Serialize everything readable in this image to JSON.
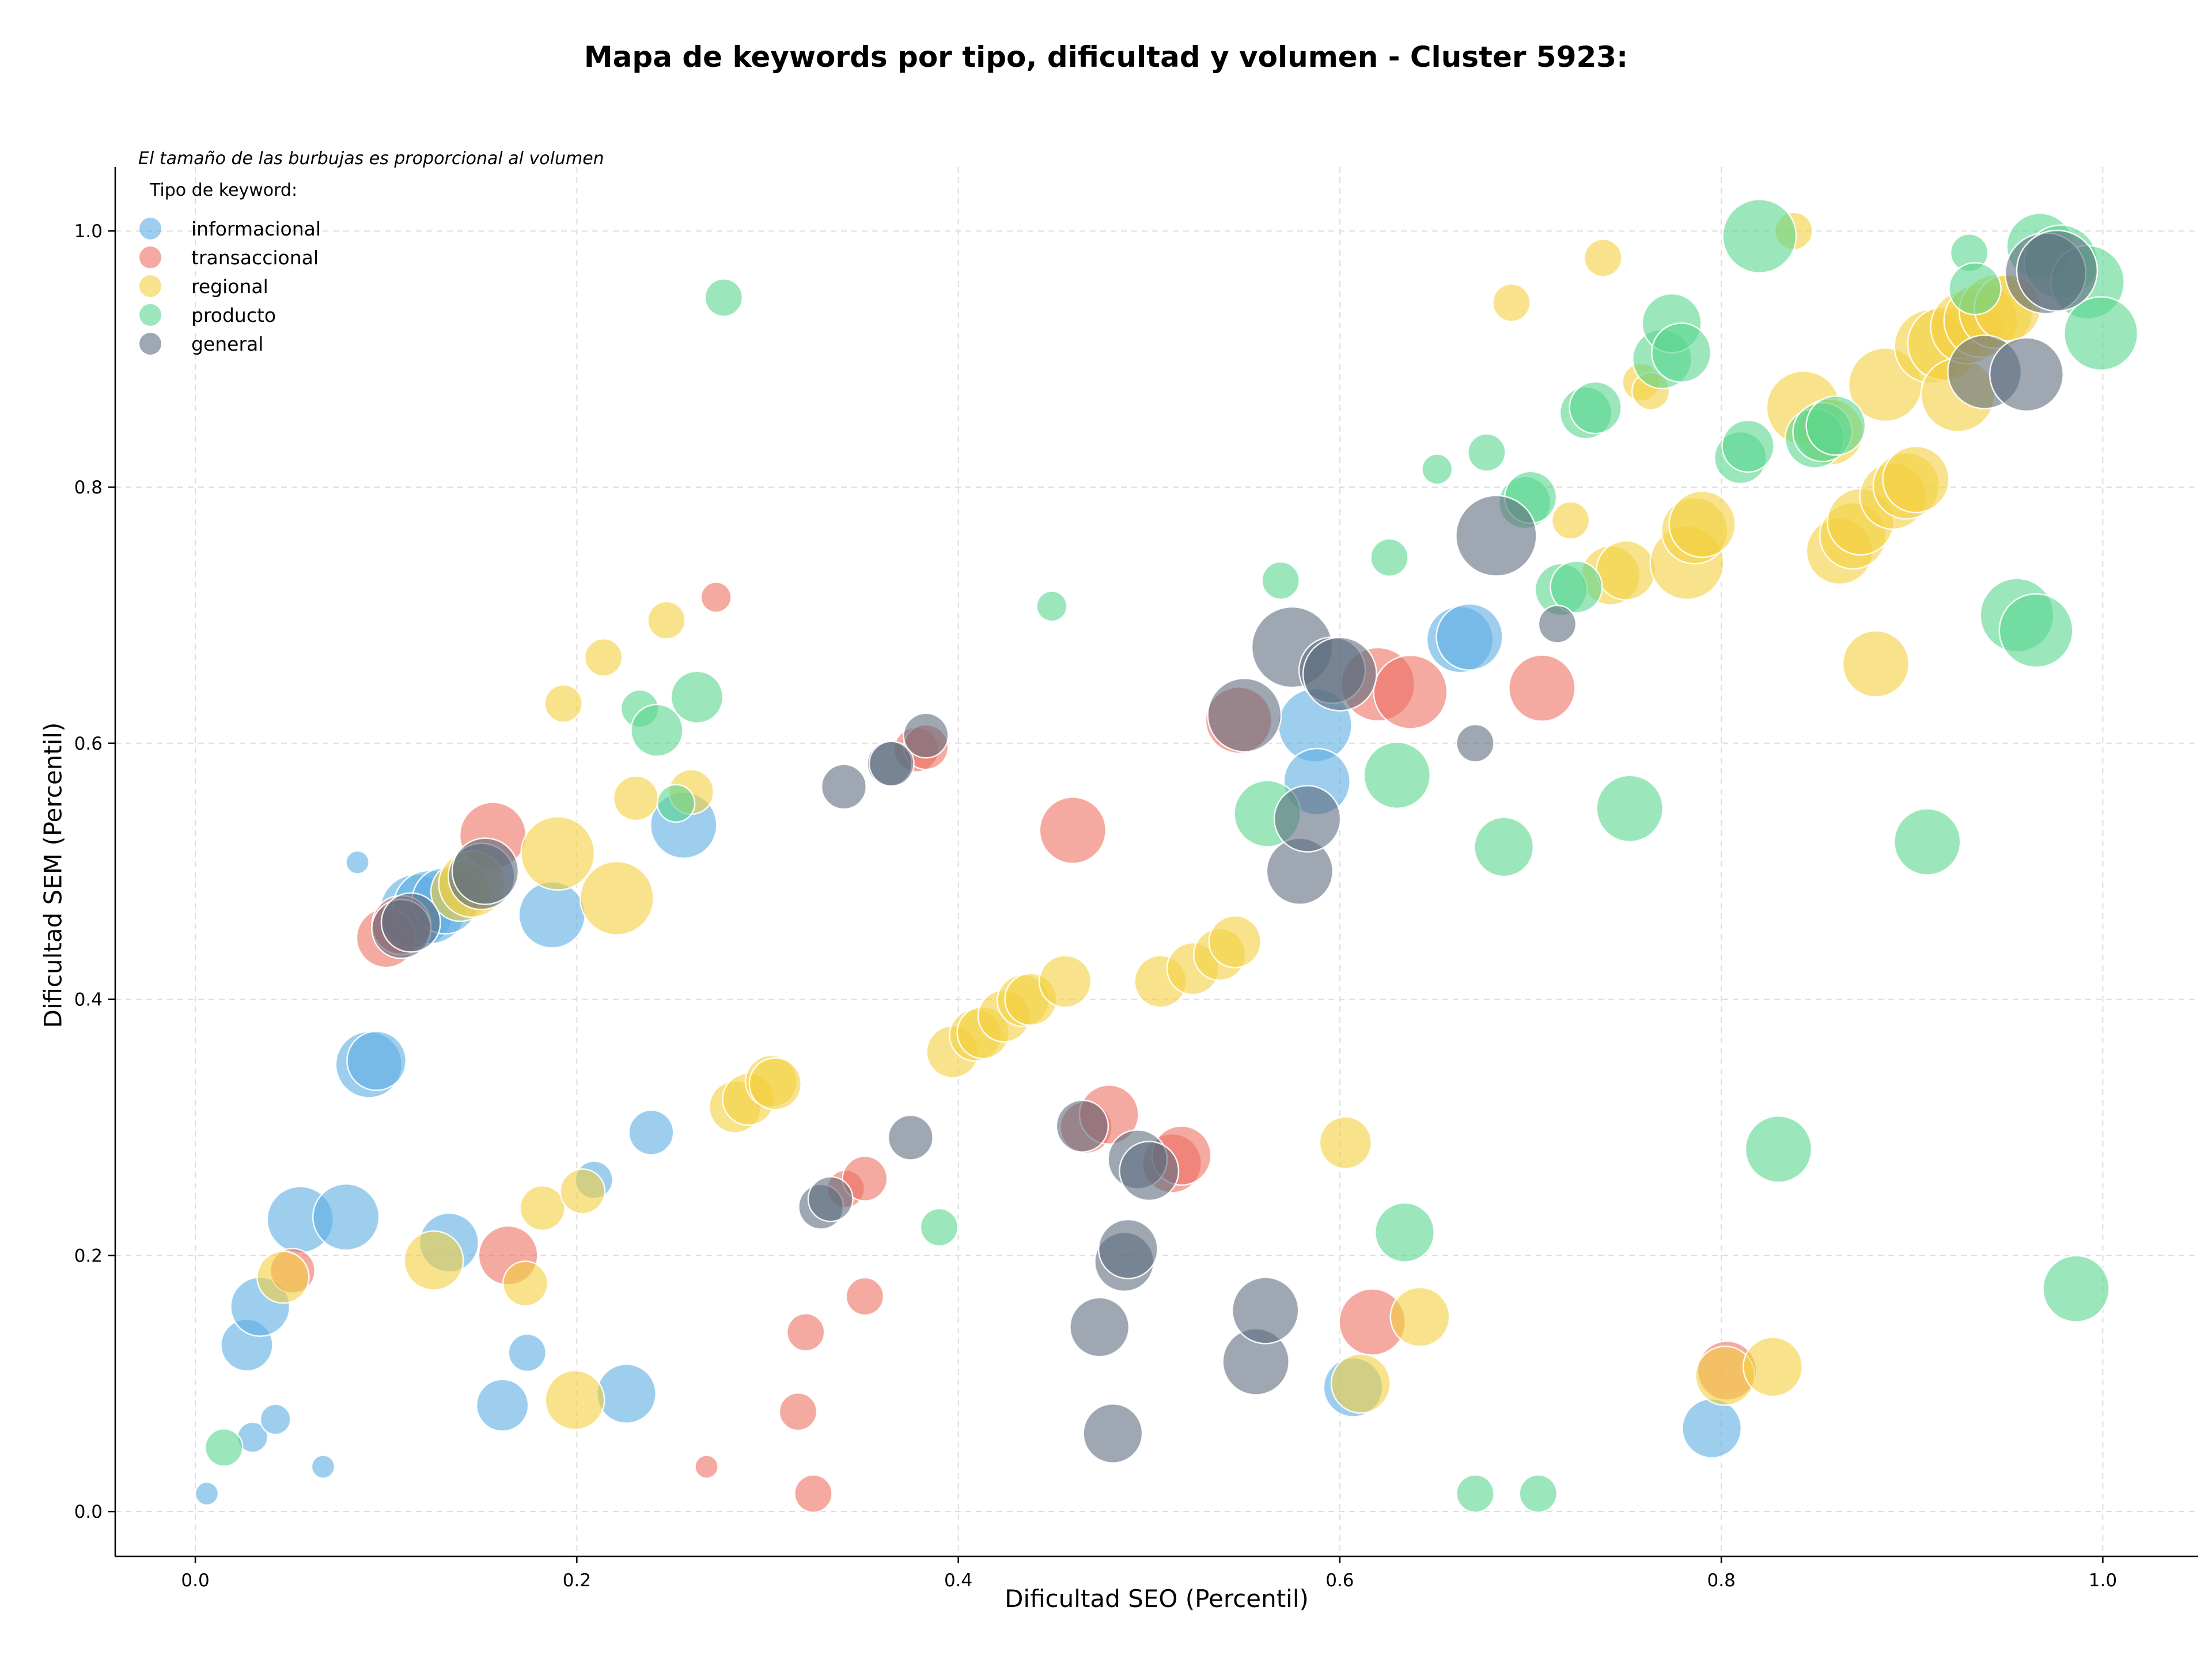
{
  "chart_data": {
    "type": "scatter",
    "title": "Mapa de keywords por tipo, dificultad y volumen - Cluster 5923:",
    "xlabel": "Dificultad SEO (Percentil)",
    "ylabel": "Dificultad SEM (Percentil)",
    "xlim": [
      -0.042,
      1.05
    ],
    "ylim": [
      -0.035,
      1.05
    ],
    "xticks": [
      0.0,
      0.2,
      0.4,
      0.6,
      0.8,
      1.0
    ],
    "yticks": [
      0.0,
      0.2,
      0.4,
      0.6,
      0.8,
      1.0
    ],
    "xtick_labels": [
      "0.0",
      "0.2",
      "0.4",
      "0.6",
      "0.8",
      "1.0"
    ],
    "ytick_labels": [
      "0.0",
      "0.2",
      "0.4",
      "0.6",
      "0.8",
      "1.0"
    ],
    "grid": true,
    "legend_position": "top-left",
    "legend_note": "El tamaño de las burbujas es proporcional al volumen",
    "legend_title": "Tipo de keyword:",
    "size_encoding": "bubble radius proportional to volume (relative 1-5)",
    "series": [
      {
        "name": "informacional",
        "color": "#5dade2",
        "points": [
          [
            0.006,
            0.014,
            1
          ],
          [
            0.027,
            0.13,
            3
          ],
          [
            0.03,
            0.058,
            1.5
          ],
          [
            0.034,
            0.16,
            3.5
          ],
          [
            0.042,
            0.072,
            1.5
          ],
          [
            0.055,
            0.228,
            4
          ],
          [
            0.067,
            0.035,
            1
          ],
          [
            0.079,
            0.23,
            4
          ],
          [
            0.085,
            0.507,
            1
          ],
          [
            0.091,
            0.349,
            4
          ],
          [
            0.095,
            0.352,
            3.5
          ],
          [
            0.116,
            0.469,
            4.5
          ],
          [
            0.123,
            0.472,
            4.5
          ],
          [
            0.131,
            0.477,
            4
          ],
          [
            0.133,
            0.21,
            3.5
          ],
          [
            0.161,
            0.083,
            3
          ],
          [
            0.174,
            0.124,
            2
          ],
          [
            0.187,
            0.466,
            4
          ],
          [
            0.209,
            0.259,
            2
          ],
          [
            0.226,
            0.092,
            3.5
          ],
          [
            0.239,
            0.296,
            2.5
          ],
          [
            0.256,
            0.536,
            4
          ],
          [
            0.587,
            0.614,
            4.5
          ],
          [
            0.588,
            0.57,
            4
          ],
          [
            0.607,
            0.097,
            3.5
          ],
          [
            0.663,
            0.681,
            4
          ],
          [
            0.668,
            0.683,
            4
          ],
          [
            0.795,
            0.065,
            3.5
          ]
        ]
      },
      {
        "name": "transaccional",
        "color": "#ec7063",
        "points": [
          [
            0.051,
            0.188,
            2.5
          ],
          [
            0.1,
            0.448,
            3.5
          ],
          [
            0.108,
            0.458,
            3.5
          ],
          [
            0.156,
            0.528,
            4
          ],
          [
            0.164,
            0.2,
            3.5
          ],
          [
            0.268,
            0.035,
            1
          ],
          [
            0.273,
            0.714,
            1.5
          ],
          [
            0.316,
            0.078,
            2
          ],
          [
            0.32,
            0.14,
            2
          ],
          [
            0.324,
            0.014,
            2
          ],
          [
            0.341,
            0.252,
            2
          ],
          [
            0.351,
            0.26,
            2.5
          ],
          [
            0.351,
            0.168,
            2
          ],
          [
            0.378,
            0.595,
            2.5
          ],
          [
            0.383,
            0.597,
            2.5
          ],
          [
            0.46,
            0.532,
            4
          ],
          [
            0.467,
            0.3,
            3
          ],
          [
            0.479,
            0.31,
            3.5
          ],
          [
            0.512,
            0.272,
            3.5
          ],
          [
            0.517,
            0.278,
            3.5
          ],
          [
            0.547,
            0.618,
            4
          ],
          [
            0.62,
            0.646,
            4.5
          ],
          [
            0.637,
            0.64,
            4.5
          ],
          [
            0.617,
            0.148,
            4
          ],
          [
            0.706,
            0.643,
            4
          ],
          [
            0.803,
            0.11,
            3.5
          ]
        ]
      },
      {
        "name": "regional",
        "color": "#f4d03f",
        "points": [
          [
            0.046,
            0.183,
            3
          ],
          [
            0.125,
            0.196,
            3.5
          ],
          [
            0.139,
            0.484,
            3.5
          ],
          [
            0.145,
            0.49,
            4
          ],
          [
            0.173,
            0.178,
            2.5
          ],
          [
            0.182,
            0.237,
            2.5
          ],
          [
            0.19,
            0.514,
            4.5
          ],
          [
            0.193,
            0.631,
            2
          ],
          [
            0.199,
            0.087,
            3.5
          ],
          [
            0.203,
            0.25,
            2.5
          ],
          [
            0.214,
            0.667,
            2
          ],
          [
            0.221,
            0.479,
            4.5
          ],
          [
            0.231,
            0.557,
            2.5
          ],
          [
            0.247,
            0.696,
            2
          ],
          [
            0.26,
            0.562,
            2.5
          ],
          [
            0.283,
            0.316,
            3
          ],
          [
            0.29,
            0.322,
            3
          ],
          [
            0.302,
            0.336,
            3
          ],
          [
            0.304,
            0.334,
            3
          ],
          [
            0.397,
            0.359,
            3
          ],
          [
            0.409,
            0.372,
            3
          ],
          [
            0.413,
            0.374,
            3
          ],
          [
            0.424,
            0.387,
            3
          ],
          [
            0.434,
            0.399,
            3
          ],
          [
            0.438,
            0.4,
            3
          ],
          [
            0.456,
            0.414,
            3
          ],
          [
            0.506,
            0.414,
            3
          ],
          [
            0.523,
            0.424,
            3
          ],
          [
            0.537,
            0.435,
            3
          ],
          [
            0.545,
            0.445,
            3
          ],
          [
            0.603,
            0.288,
            3
          ],
          [
            0.611,
            0.1,
            3.5
          ],
          [
            0.642,
            0.152,
            3.5
          ],
          [
            0.69,
            0.944,
            2
          ],
          [
            0.721,
            0.774,
            2
          ],
          [
            0.738,
            0.979,
            2
          ],
          [
            0.742,
            0.731,
            3.5
          ],
          [
            0.75,
            0.735,
            3.5
          ],
          [
            0.758,
            0.882,
            2
          ],
          [
            0.763,
            0.875,
            2
          ],
          [
            0.782,
            0.741,
            4.5
          ],
          [
            0.786,
            0.766,
            4
          ],
          [
            0.79,
            0.771,
            4
          ],
          [
            0.802,
            0.106,
            3.5
          ],
          [
            0.827,
            0.113,
            3.5
          ],
          [
            0.838,
            1.0,
            2
          ],
          [
            0.843,
            0.862,
            4.5
          ],
          [
            0.857,
            0.843,
            4
          ],
          [
            0.862,
            0.75,
            4
          ],
          [
            0.869,
            0.762,
            4
          ],
          [
            0.873,
            0.773,
            4
          ],
          [
            0.881,
            0.662,
            4
          ],
          [
            0.886,
            0.88,
            4.5
          ],
          [
            0.89,
            0.793,
            4
          ],
          [
            0.897,
            0.801,
            4
          ],
          [
            0.902,
            0.806,
            4
          ],
          [
            0.91,
            0.91,
            4.5
          ],
          [
            0.917,
            0.912,
            4.5
          ],
          [
            0.924,
            0.872,
            4.5
          ],
          [
            0.929,
            0.925,
            4.5
          ],
          [
            0.936,
            0.93,
            4.5
          ],
          [
            0.944,
            0.937,
            4.5
          ],
          [
            0.95,
            0.94,
            4
          ]
        ]
      },
      {
        "name": "producto",
        "color": "#58d68d",
        "points": [
          [
            0.015,
            0.05,
            2
          ],
          [
            0.233,
            0.627,
            2
          ],
          [
            0.242,
            0.61,
            3
          ],
          [
            0.252,
            0.553,
            2
          ],
          [
            0.263,
            0.636,
            3
          ],
          [
            0.277,
            0.948,
            2
          ],
          [
            0.39,
            0.222,
            2
          ],
          [
            0.449,
            0.707,
            1.5
          ],
          [
            0.562,
            0.545,
            4
          ],
          [
            0.569,
            0.727,
            2
          ],
          [
            0.626,
            0.745,
            2
          ],
          [
            0.63,
            0.575,
            4
          ],
          [
            0.634,
            0.218,
            3.5
          ],
          [
            0.651,
            0.814,
            1.5
          ],
          [
            0.671,
            0.014,
            2
          ],
          [
            0.677,
            0.827,
            2
          ],
          [
            0.686,
            0.519,
            3.5
          ],
          [
            0.697,
            0.788,
            3
          ],
          [
            0.7,
            0.792,
            3
          ],
          [
            0.704,
            0.014,
            2
          ],
          [
            0.716,
            0.72,
            3
          ],
          [
            0.724,
            0.722,
            3
          ],
          [
            0.729,
            0.858,
            3
          ],
          [
            0.734,
            0.862,
            3
          ],
          [
            0.752,
            0.549,
            4
          ],
          [
            0.769,
            0.9,
            3.5
          ],
          [
            0.774,
            0.928,
            3.5
          ],
          [
            0.779,
            0.905,
            3.5
          ],
          [
            0.81,
            0.823,
            3
          ],
          [
            0.814,
            0.832,
            3
          ],
          [
            0.82,
            0.996,
            4.5
          ],
          [
            0.83,
            0.283,
            4
          ],
          [
            0.849,
            0.838,
            3.5
          ],
          [
            0.853,
            0.843,
            3.5
          ],
          [
            0.86,
            0.848,
            3.5
          ],
          [
            0.908,
            0.523,
            4
          ],
          [
            0.93,
            0.983,
            2
          ],
          [
            0.933,
            0.955,
            3
          ],
          [
            0.955,
            0.7,
            4.5
          ],
          [
            0.965,
            0.688,
            4.5
          ],
          [
            0.967,
            0.988,
            4
          ],
          [
            0.978,
            0.976,
            4.5
          ],
          [
            0.992,
            0.96,
            4.5
          ],
          [
            0.999,
            0.92,
            4.5
          ],
          [
            0.986,
            0.174,
            4
          ]
        ]
      },
      {
        "name": "general",
        "color": "#5d6d7e",
        "points": [
          [
            0.108,
            0.455,
            3.5
          ],
          [
            0.113,
            0.46,
            3.5
          ],
          [
            0.15,
            0.496,
            4
          ],
          [
            0.152,
            0.5,
            4
          ],
          [
            0.34,
            0.566,
            2.5
          ],
          [
            0.328,
            0.238,
            2.5
          ],
          [
            0.333,
            0.244,
            2.5
          ],
          [
            0.364,
            0.584,
            2.5
          ],
          [
            0.365,
            0.584,
            2.5
          ],
          [
            0.375,
            0.292,
            2.5
          ],
          [
            0.383,
            0.606,
            2.5
          ],
          [
            0.465,
            0.301,
            3
          ],
          [
            0.474,
            0.144,
            3.5
          ],
          [
            0.481,
            0.061,
            3.5
          ],
          [
            0.487,
            0.195,
            3.5
          ],
          [
            0.489,
            0.205,
            3.5
          ],
          [
            0.494,
            0.275,
            3.5
          ],
          [
            0.5,
            0.266,
            3.5
          ],
          [
            0.55,
            0.622,
            4.5
          ],
          [
            0.556,
            0.117,
            4
          ],
          [
            0.561,
            0.157,
            4
          ],
          [
            0.575,
            0.675,
            5
          ],
          [
            0.579,
            0.5,
            4
          ],
          [
            0.583,
            0.541,
            4
          ],
          [
            0.596,
            0.657,
            4
          ],
          [
            0.6,
            0.654,
            4.5
          ],
          [
            0.671,
            0.6,
            2
          ],
          [
            0.682,
            0.762,
            5
          ],
          [
            0.714,
            0.693,
            2
          ],
          [
            0.938,
            0.89,
            4.5
          ],
          [
            0.96,
            0.888,
            4.5
          ],
          [
            0.97,
            0.967,
            5
          ],
          [
            0.976,
            0.969,
            5
          ]
        ]
      }
    ]
  }
}
